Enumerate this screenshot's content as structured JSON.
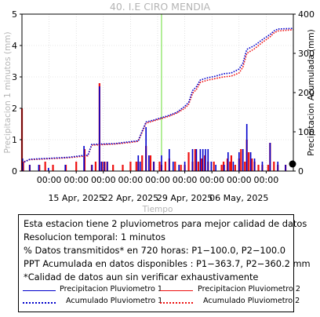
{
  "chart_data": {
    "type": "bar+line",
    "title": "40. I.E CIRO MENDIA",
    "xlabel": "Tiempo",
    "ylabel_left": "Precipitacion 1 minutos (mm)",
    "ylabel_right": "Precipitacion Acumulada (mm)",
    "ylim_left": [
      0,
      5
    ],
    "ylim_right": [
      0,
      400
    ],
    "yticks_left": [
      "0",
      "1",
      "2",
      "3",
      "4",
      "5"
    ],
    "yticks_right": [
      "0",
      "100",
      "200",
      "300",
      "400"
    ],
    "xlim": [
      "2025-04-09",
      "2025-05-14"
    ],
    "xtick_times": [
      "00:00",
      "00:00",
      "00:00",
      "00:00",
      "00:00",
      "00:00",
      "00:00",
      "00:00",
      "00:00"
    ],
    "xtick_dates": [
      "15 Apr, 2025",
      "22 Apr, 2025",
      "29 Apr, 2025",
      "06 May, 2025"
    ],
    "grid": true,
    "marker_date": "2025-04-27",
    "series": [
      {
        "name": "Precipitacion Pluviometro 1",
        "style": "bar",
        "color": "#0000cc",
        "axis": "left",
        "points": [
          [
            "2025-04-09 02:00",
            0.4
          ],
          [
            "2025-04-10 00:00",
            0.2
          ],
          [
            "2025-04-11 04:00",
            0.2
          ],
          [
            "2025-04-12 10:00",
            0.1
          ],
          [
            "2025-04-14 14:00",
            0.2
          ],
          [
            "2025-04-17 00:00",
            0.8
          ],
          [
            "2025-04-18 01:00",
            0.2
          ],
          [
            "2025-04-19 00:00",
            2.7
          ],
          [
            "2025-04-19 06:00",
            0.3
          ],
          [
            "2025-04-19 14:00",
            0.3
          ],
          [
            "2025-04-20 00:00",
            0.3
          ],
          [
            "2025-04-24 00:00",
            0.5
          ],
          [
            "2025-04-24 06:00",
            0.3
          ],
          [
            "2025-04-25 00:00",
            1.4
          ],
          [
            "2025-04-25 09:00",
            0.5
          ],
          [
            "2025-04-26 00:00",
            0.3
          ],
          [
            "2025-04-27 00:00",
            0.5
          ],
          [
            "2025-04-28 00:00",
            0.7
          ],
          [
            "2025-04-28 12:00",
            0.3
          ],
          [
            "2025-04-29 06:00",
            0.2
          ],
          [
            "2025-04-30 00:00",
            0.3
          ],
          [
            "2025-05-01 00:00",
            0.7
          ],
          [
            "2025-05-01 12:00",
            0.7
          ],
          [
            "2025-05-02 00:00",
            0.7
          ],
          [
            "2025-05-02 08:00",
            0.7
          ],
          [
            "2025-05-02 16:00",
            0.7
          ],
          [
            "2025-05-03 00:00",
            0.7
          ],
          [
            "2025-05-03 10:00",
            0.3
          ],
          [
            "2025-05-04 00:00",
            0.2
          ],
          [
            "2025-05-05 02:00",
            0.2
          ],
          [
            "2025-05-05 14:00",
            0.6
          ],
          [
            "2025-05-06 06:00",
            0.3
          ],
          [
            "2025-05-07 00:00",
            0.6
          ],
          [
            "2025-05-07 12:00",
            0.7
          ],
          [
            "2025-05-08 00:00",
            1.5
          ],
          [
            "2025-05-08 12:00",
            0.6
          ],
          [
            "2025-05-09 00:00",
            0.4
          ],
          [
            "2025-05-10 00:00",
            0.3
          ],
          [
            "2025-05-11 00:00",
            0.9
          ],
          [
            "2025-05-12 00:00",
            0.3
          ],
          [
            "2025-05-13 00:00",
            0.2
          ]
        ]
      },
      {
        "name": "Precipitacion Pluviometro 2",
        "style": "bar",
        "color": "#ee1111",
        "axis": "left",
        "points": [
          [
            "2025-04-09 00:00",
            2.0
          ],
          [
            "2025-04-09 04:00",
            0.3
          ],
          [
            "2025-04-10 00:00",
            0.2
          ],
          [
            "2025-04-11 06:00",
            0.2
          ],
          [
            "2025-04-12 00:00",
            0.3
          ],
          [
            "2025-04-13 00:00",
            0.2
          ],
          [
            "2025-04-14 16:00",
            0.2
          ],
          [
            "2025-04-16 00:00",
            0.3
          ],
          [
            "2025-04-17 02:00",
            0.7
          ],
          [
            "2025-04-18 00:00",
            0.2
          ],
          [
            "2025-04-18 12:00",
            0.3
          ],
          [
            "2025-04-19 00:00",
            2.8
          ],
          [
            "2025-04-19 08:00",
            0.3
          ],
          [
            "2025-04-19 16:00",
            0.3
          ],
          [
            "2025-04-20 00:00",
            0.3
          ],
          [
            "2025-04-20 18:00",
            0.2
          ],
          [
            "2025-04-22 00:00",
            0.2
          ],
          [
            "2025-04-23 00:00",
            0.3
          ],
          [
            "2025-04-23 18:00",
            0.3
          ],
          [
            "2025-04-24 00:00",
            0.3
          ],
          [
            "2025-04-24 12:00",
            0.5
          ],
          [
            "2025-04-25 00:00",
            0.8
          ],
          [
            "2025-04-25 14:00",
            0.5
          ],
          [
            "2025-04-26 00:00",
            0.3
          ],
          [
            "2025-04-26 18:00",
            0.3
          ],
          [
            "2025-04-27 00:00",
            0.2
          ],
          [
            "2025-04-27 12:00",
            0.3
          ],
          [
            "2025-04-28 00:00",
            0.4
          ],
          [
            "2025-04-28 18:00",
            0.3
          ],
          [
            "2025-04-29 12:00",
            0.2
          ],
          [
            "2025-04-30 00:00",
            0.2
          ],
          [
            "2025-04-30 12:00",
            0.6
          ],
          [
            "2025-05-01 00:00",
            0.3
          ],
          [
            "2025-05-01 08:00",
            0.7
          ],
          [
            "2025-05-01 18:00",
            0.3
          ],
          [
            "2025-05-02 04:00",
            0.4
          ],
          [
            "2025-05-02 14:00",
            0.5
          ],
          [
            "2025-05-03 00:00",
            0.3
          ],
          [
            "2025-05-03 18:00",
            0.3
          ],
          [
            "2025-05-04 18:00",
            0.2
          ],
          [
            "2025-05-05 00:00",
            0.3
          ],
          [
            "2025-05-05 12:00",
            0.4
          ],
          [
            "2025-05-05 20:00",
            0.3
          ],
          [
            "2025-05-06 00:00",
            0.5
          ],
          [
            "2025-05-06 12:00",
            0.2
          ],
          [
            "2025-05-07 00:00",
            0.4
          ],
          [
            "2025-05-07 06:00",
            0.7
          ],
          [
            "2025-05-07 18:00",
            0.3
          ],
          [
            "2025-05-08 00:00",
            1.0
          ],
          [
            "2025-05-08 06:00",
            0.6
          ],
          [
            "2025-05-08 16:00",
            0.4
          ],
          [
            "2025-05-09 00:00",
            0.3
          ],
          [
            "2025-05-09 12:00",
            0.2
          ],
          [
            "2025-05-10 00:00",
            0.2
          ],
          [
            "2025-05-10 18:00",
            0.2
          ],
          [
            "2025-05-11 00:00",
            0.9
          ],
          [
            "2025-05-11 12:00",
            0.3
          ],
          [
            "2025-05-12 00:00",
            0.2
          ],
          [
            "2025-05-13 00:00",
            0.2
          ]
        ]
      },
      {
        "name": "Acumulado Pluviometro 1",
        "style": "dotted-line",
        "color": "#0000cc",
        "axis": "right",
        "points": [
          [
            "2025-04-09 00:00",
            20
          ],
          [
            "2025-04-10 00:00",
            30
          ],
          [
            "2025-04-12 00:00",
            32
          ],
          [
            "2025-04-15 00:00",
            35
          ],
          [
            "2025-04-17 00:00",
            40
          ],
          [
            "2025-04-17 12:00",
            40
          ],
          [
            "2025-04-18 00:00",
            68
          ],
          [
            "2025-04-21 00:00",
            70
          ],
          [
            "2025-04-23 00:00",
            75
          ],
          [
            "2025-04-24 00:00",
            77
          ],
          [
            "2025-04-24 06:00",
            90
          ],
          [
            "2025-04-25 00:00",
            125
          ],
          [
            "2025-04-26 00:00",
            130
          ],
          [
            "2025-04-28 00:00",
            142
          ],
          [
            "2025-04-29 00:00",
            150
          ],
          [
            "2025-04-30 00:00",
            165
          ],
          [
            "2025-04-30 12:00",
            175
          ],
          [
            "2025-05-01 00:00",
            205
          ],
          [
            "2025-05-01 12:00",
            215
          ],
          [
            "2025-05-02 00:00",
            232
          ],
          [
            "2025-05-03 00:00",
            238
          ],
          [
            "2025-05-04 00:00",
            242
          ],
          [
            "2025-05-05 00:00",
            248
          ],
          [
            "2025-05-06 00:00",
            250
          ],
          [
            "2025-05-07 00:00",
            260
          ],
          [
            "2025-05-07 12:00",
            275
          ],
          [
            "2025-05-08 00:00",
            310
          ],
          [
            "2025-05-09 00:00",
            320
          ],
          [
            "2025-05-10 00:00",
            335
          ],
          [
            "2025-05-11 00:00",
            348
          ],
          [
            "2025-05-11 12:00",
            357
          ],
          [
            "2025-05-12 00:00",
            362
          ],
          [
            "2025-05-14 00:00",
            363.7
          ]
        ]
      },
      {
        "name": "Acumulado Pluviometro 2",
        "style": "dotted-line",
        "color": "#ee1111",
        "axis": "right",
        "points": [
          [
            "2025-04-09 00:00",
            22
          ],
          [
            "2025-04-10 00:00",
            29
          ],
          [
            "2025-04-12 00:00",
            31
          ],
          [
            "2025-04-15 00:00",
            34
          ],
          [
            "2025-04-17 00:00",
            38
          ],
          [
            "2025-04-17 12:00",
            39
          ],
          [
            "2025-04-18 00:00",
            66
          ],
          [
            "2025-04-21 00:00",
            69
          ],
          [
            "2025-04-23 00:00",
            73
          ],
          [
            "2025-04-24 00:00",
            76
          ],
          [
            "2025-04-24 06:00",
            88
          ],
          [
            "2025-04-25 00:00",
            122
          ],
          [
            "2025-04-26 00:00",
            128
          ],
          [
            "2025-04-28 00:00",
            140
          ],
          [
            "2025-04-29 00:00",
            148
          ],
          [
            "2025-04-30 00:00",
            160
          ],
          [
            "2025-04-30 12:00",
            170
          ],
          [
            "2025-05-01 00:00",
            198
          ],
          [
            "2025-05-01 12:00",
            208
          ],
          [
            "2025-05-02 00:00",
            226
          ],
          [
            "2025-05-03 00:00",
            232
          ],
          [
            "2025-05-04 00:00",
            236
          ],
          [
            "2025-05-05 00:00",
            240
          ],
          [
            "2025-05-06 00:00",
            242
          ],
          [
            "2025-05-07 00:00",
            250
          ],
          [
            "2025-05-07 12:00",
            265
          ],
          [
            "2025-05-08 00:00",
            300
          ],
          [
            "2025-05-09 00:00",
            312
          ],
          [
            "2025-05-10 00:00",
            328
          ],
          [
            "2025-05-11 00:00",
            342
          ],
          [
            "2025-05-11 12:00",
            352
          ],
          [
            "2025-05-12 00:00",
            357
          ],
          [
            "2025-05-14 00:00",
            360.2
          ]
        ]
      }
    ]
  },
  "info": {
    "line1": "Esta estacion tiene 2 pluviometros para mejor calidad de datos",
    "line2": "Resolucion temporal: 1 minutos",
    "line3": "% Datos transmitidos* en 720 horas: P1−100.0, P2−100.0",
    "line4": "PPT Acumulada en datos disponibles : P1−363.7, P2−360.2 mm",
    "line5": "*Calidad de datos aun sin verificar exhaustivamente",
    "legend": {
      "p1": "Precipitacion Pluviometro 1",
      "p2": "Precipitacion Pluviometro 2",
      "a1": "Acumulado Pluviometro 1",
      "a2": "Acumulado Pluviometro 2"
    }
  },
  "colors": {
    "blue": "#0000cc",
    "red": "#ee1111",
    "green": "#66dd33",
    "grid": "#cfcfcf"
  }
}
